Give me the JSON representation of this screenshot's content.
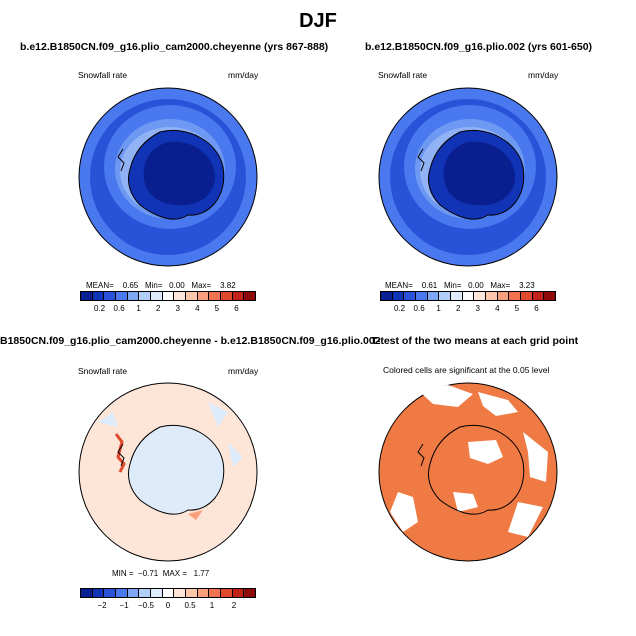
{
  "title": "DJF",
  "panels": {
    "p1": {
      "title": "b.e12.B1850CN.f09_g16.plio_cam2000.cheyenne (yrs 867-888)",
      "left_label": "Snowfall rate",
      "right_label": "mm/day",
      "mean_label": "MEAN=",
      "mean": "0.65",
      "min_label": "Min=",
      "min": "0.00",
      "max_label": "Max=",
      "max": "3.82"
    },
    "p2": {
      "title": "b.e12.B1850CN.f09_g16.plio.002 (yrs 601-650)",
      "left_label": "Snowfall rate",
      "right_label": "mm/day",
      "mean_label": "MEAN=",
      "mean": "0.61",
      "min_label": "Min=",
      "min": "0.00",
      "max_label": "Max=",
      "max": "3.23"
    },
    "p3": {
      "title": "B1850CN.f09_g16.plio_cam2000.cheyenne - b.e12.B1850CN.f09_g16.plio.002",
      "left_label": "Snowfall rate",
      "right_label": "mm/day",
      "min_label": "MIN =",
      "min": "−0.71",
      "max_label": "MAX =",
      "max": "1.77"
    },
    "p4": {
      "title": "T-test of the two means at each grid point",
      "subtitle": "Colored cells are significant at the 0.05 level"
    }
  },
  "colorbar_abs": {
    "colors": [
      "#0a1f8f",
      "#1133b5",
      "#2a52d9",
      "#4a78ee",
      "#7ea6f5",
      "#b3cdf9",
      "#ddebfb",
      "#ffffff",
      "#fde5d8",
      "#fcc6ab",
      "#f8a07c",
      "#f2744f",
      "#e04a2c",
      "#c0221a",
      "#8e0a0a"
    ],
    "ticks": [
      "0.2",
      "0.6",
      "1",
      "2",
      "3",
      "4",
      "5",
      "6"
    ]
  },
  "colorbar_diff": {
    "colors": [
      "#0a1f8f",
      "#1133b5",
      "#2a52d9",
      "#4a78ee",
      "#7ea6f5",
      "#b3cdf9",
      "#ddebfb",
      "#ffffff",
      "#fde5d8",
      "#fcc6ab",
      "#f8a07c",
      "#f2744f",
      "#e04a2c",
      "#c0221a",
      "#8e0a0a"
    ],
    "ticks": [
      "−2",
      "−1",
      "−0.5",
      "0",
      "0.5",
      "1",
      "2"
    ]
  }
}
